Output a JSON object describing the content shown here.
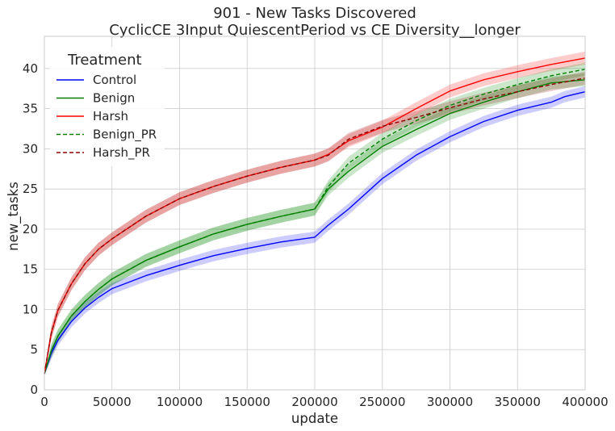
{
  "chart_data": {
    "type": "line",
    "title": "901 - New Tasks Discovered",
    "subtitle": "CyclicCE 3Input QuiescentPeriod vs CE Diversity__longer",
    "xlabel": "update",
    "ylabel": "new_tasks",
    "xlim": [
      0,
      400000
    ],
    "ylim": [
      0,
      44
    ],
    "xticks": [
      0,
      50000,
      100000,
      150000,
      200000,
      250000,
      300000,
      350000,
      400000
    ],
    "yticks": [
      0,
      5,
      10,
      15,
      20,
      25,
      30,
      35,
      40
    ],
    "grid": true,
    "legend": {
      "title": "Treatment",
      "placement": "top-left"
    },
    "series": [
      {
        "name": "Control",
        "color": "#0000ff",
        "style": "solid",
        "band": 0.7,
        "x": [
          0,
          5000,
          10000,
          20000,
          30000,
          40000,
          50000,
          75000,
          100000,
          125000,
          150000,
          175000,
          200000,
          210000,
          225000,
          250000,
          275000,
          300000,
          325000,
          350000,
          375000,
          385000,
          400000
        ],
        "y": [
          2,
          4.5,
          6.2,
          8.5,
          10.2,
          11.5,
          12.6,
          14.2,
          15.5,
          16.7,
          17.6,
          18.4,
          19,
          20.5,
          22.5,
          26.3,
          29.2,
          31.5,
          33.4,
          34.8,
          35.8,
          36.5,
          37.1
        ]
      },
      {
        "name": "Benign",
        "color": "#008000",
        "style": "solid",
        "band": 0.8,
        "x": [
          0,
          5000,
          10000,
          20000,
          30000,
          40000,
          50000,
          75000,
          100000,
          125000,
          150000,
          175000,
          200000,
          210000,
          225000,
          250000,
          275000,
          300000,
          325000,
          350000,
          375000,
          400000
        ],
        "y": [
          2,
          4.8,
          6.7,
          9.2,
          11,
          12.5,
          13.8,
          16.1,
          17.8,
          19.4,
          20.6,
          21.6,
          22.5,
          25,
          27.2,
          30.3,
          32.4,
          34.4,
          35.8,
          37.1,
          38.2,
          38.6
        ]
      },
      {
        "name": "Harsh",
        "color": "#ff0000",
        "style": "solid",
        "band": 0.8,
        "x": [
          0,
          5000,
          10000,
          20000,
          30000,
          40000,
          50000,
          75000,
          100000,
          125000,
          150000,
          175000,
          200000,
          210000,
          225000,
          250000,
          275000,
          300000,
          325000,
          350000,
          375000,
          400000
        ],
        "y": [
          2,
          7,
          9.9,
          13.2,
          15.7,
          17.5,
          18.8,
          21.6,
          23.8,
          25.3,
          26.6,
          27.7,
          28.6,
          29.3,
          31,
          32.7,
          35,
          37.2,
          38.6,
          39.6,
          40.5,
          41.3
        ]
      },
      {
        "name": "Benign_PR",
        "color": "#008000",
        "style": "dashed",
        "band": 0.8,
        "x": [
          0,
          5000,
          10000,
          20000,
          30000,
          40000,
          50000,
          75000,
          100000,
          125000,
          150000,
          175000,
          200000,
          210000,
          225000,
          250000,
          275000,
          300000,
          325000,
          350000,
          375000,
          400000
        ],
        "y": [
          2,
          4.8,
          6.7,
          9.2,
          11,
          12.5,
          13.8,
          16.1,
          17.8,
          19.4,
          20.6,
          21.6,
          22.5,
          25.3,
          28.2,
          31.2,
          33.5,
          35.4,
          36.8,
          38,
          39.1,
          39.9
        ]
      },
      {
        "name": "Harsh_PR",
        "color": "#8b0000",
        "style": "dashed",
        "band": 0.8,
        "x": [
          0,
          5000,
          10000,
          20000,
          30000,
          40000,
          50000,
          75000,
          100000,
          125000,
          150000,
          175000,
          200000,
          210000,
          225000,
          250000,
          275000,
          300000,
          325000,
          350000,
          375000,
          400000
        ],
        "y": [
          2,
          7,
          9.9,
          13.2,
          15.7,
          17.5,
          18.8,
          21.6,
          23.8,
          25.3,
          26.6,
          27.7,
          28.6,
          29.2,
          31.2,
          32.8,
          33.9,
          35.1,
          36.2,
          37.1,
          38,
          38.8
        ]
      }
    ]
  }
}
